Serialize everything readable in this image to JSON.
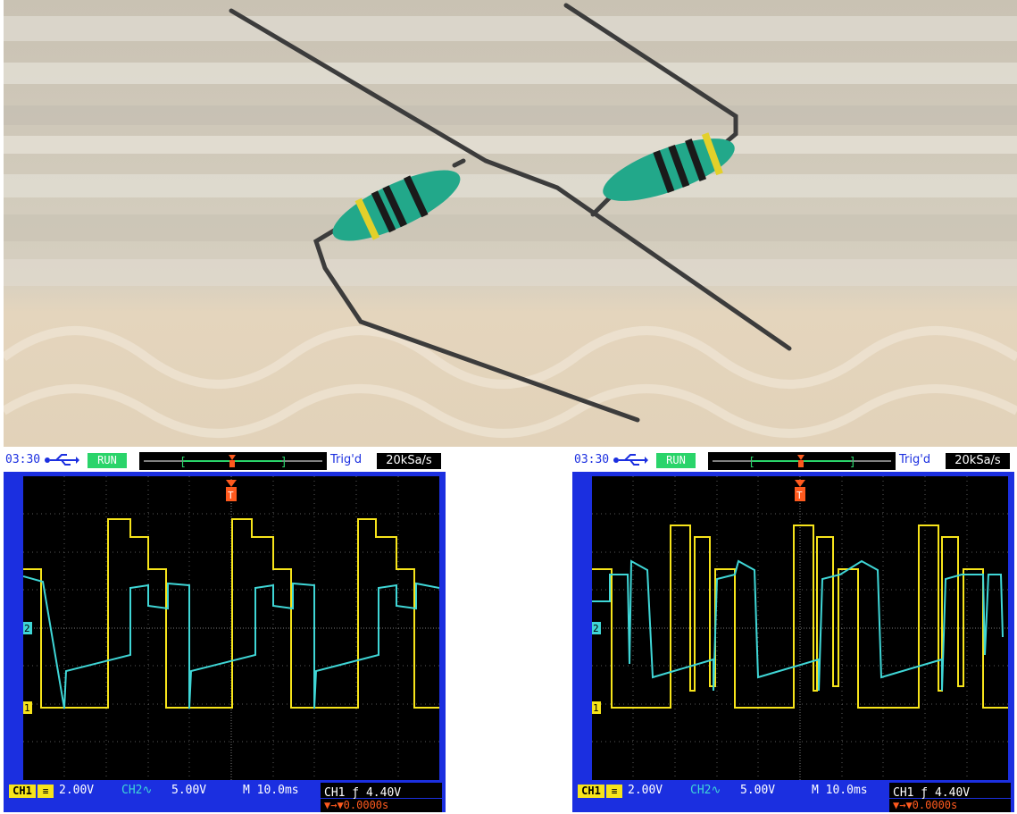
{
  "colors": {
    "ch1": "#f7e41a",
    "ch2": "#3fd6d6",
    "scope_frame": "#1b2fe0",
    "trigger": "#ff5a1e"
  },
  "photo": {
    "subject": "two-green-inductors-on-table",
    "icon": "inductor-photo"
  },
  "scopes": [
    {
      "time": "03:30",
      "run": "RUN",
      "trig_status": "Trig'd",
      "sample_rate": "20kSa/s",
      "trigger_marker": "T",
      "ch1_marker": "1",
      "ch2_marker": "2",
      "ch1_label": "CH1",
      "ch1_coupling": "≡",
      "ch1_scale": "2.00V",
      "ch2_label": "CH2∿",
      "ch2_scale": "5.00V",
      "timebase": "M 10.0ms",
      "trigger_level": "CH1 ƒ 4.40V",
      "trigger_offset": "▼→▼0.0000s"
    },
    {
      "time": "03:30",
      "run": "RUN",
      "trig_status": "Trig'd",
      "sample_rate": "20kSa/s",
      "trigger_marker": "T",
      "ch1_marker": "1",
      "ch2_marker": "2",
      "ch1_label": "CH1",
      "ch1_coupling": "≡",
      "ch1_scale": "2.00V",
      "ch2_label": "CH2∿",
      "ch2_scale": "5.00V",
      "timebase": "M 10.0ms",
      "trigger_level": "CH1 ƒ 4.40V",
      "trigger_offset": "▼→▼0.0000s"
    }
  ]
}
